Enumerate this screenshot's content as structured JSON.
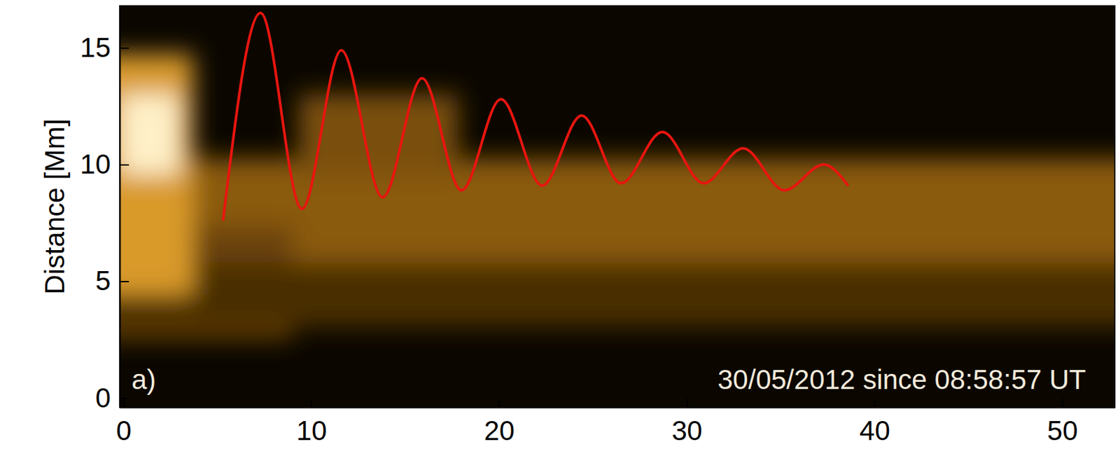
{
  "chart_data": {
    "type": "line",
    "ylabel": "Distance [Mm]",
    "annotations": [
      "a)",
      "30/05/2012 since 08:58:57 UT"
    ],
    "x": [
      5.3,
      7.3,
      9.5,
      11.6,
      13.8,
      15.9,
      18.0,
      20.1,
      22.3,
      24.4,
      26.5,
      28.7,
      30.9,
      33.0,
      35.2,
      37.3,
      38.6
    ],
    "series": [
      {
        "color": "#e8150f",
        "values": [
          7.6,
          16.5,
          8.1,
          14.9,
          8.6,
          13.7,
          8.9,
          12.8,
          9.1,
          12.1,
          9.2,
          11.4,
          9.2,
          10.7,
          8.9,
          10.0,
          9.1
        ]
      }
    ],
    "xlim": [
      -0.2,
      52.8
    ],
    "xticks": [
      0,
      10,
      20,
      30,
      40,
      50
    ],
    "ylim": [
      -0.4,
      16.8
    ],
    "yticks": [
      0,
      5,
      10,
      15
    ],
    "grid": false
  }
}
